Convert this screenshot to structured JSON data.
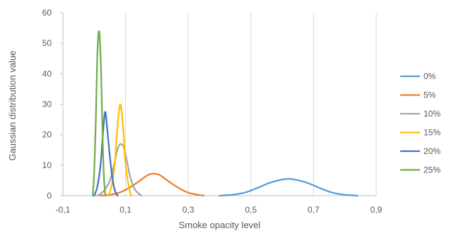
{
  "chart_data": {
    "type": "line",
    "title": "",
    "xlabel": "Smoke opacity level",
    "ylabel": "Gaussian distribution value",
    "xlim": [
      -0.1,
      0.9
    ],
    "ylim": [
      0,
      60
    ],
    "xticks": [
      -0.1,
      0.1,
      0.3,
      0.5,
      0.7,
      0.9
    ],
    "xtick_labels": [
      "-0,1",
      "0,1",
      "0,3",
      "0,5",
      "0,7",
      "0,9"
    ],
    "yticks": [
      0,
      10,
      20,
      30,
      40,
      50,
      60
    ],
    "ytick_labels": [
      "0",
      "10",
      "20",
      "30",
      "40",
      "50",
      "60"
    ],
    "grid": "vertical",
    "legend_position": "right",
    "series": [
      {
        "name": "0%",
        "color": "#5B9BD5",
        "x": [
          0.4,
          0.44,
          0.48,
          0.52,
          0.56,
          0.6,
          0.62,
          0.64,
          0.68,
          0.72,
          0.76,
          0.8,
          0.84
        ],
        "y": [
          0.0,
          0.3,
          1.0,
          2.5,
          4.2,
          5.3,
          5.5,
          5.3,
          4.2,
          2.5,
          1.0,
          0.3,
          0.0
        ]
      },
      {
        "name": "5%",
        "color": "#ED7D31",
        "x": [
          0.02,
          0.05,
          0.08,
          0.11,
          0.14,
          0.17,
          0.19,
          0.21,
          0.24,
          0.27,
          0.3,
          0.33,
          0.35
        ],
        "y": [
          0.0,
          0.3,
          1.0,
          2.5,
          4.5,
          6.7,
          7.2,
          6.7,
          4.5,
          2.5,
          1.0,
          0.3,
          0.0
        ]
      },
      {
        "name": "10%",
        "color": "#A5A5A5",
        "x": [
          0.01,
          0.03,
          0.05,
          0.065,
          0.075,
          0.085,
          0.095,
          0.105,
          0.115,
          0.13,
          0.15
        ],
        "y": [
          0.0,
          1.5,
          5.0,
          11.0,
          15.5,
          17.0,
          15.5,
          11.0,
          6.0,
          2.0,
          0.0
        ]
      },
      {
        "name": "15%",
        "color": "#FFC000",
        "x": [
          0.045,
          0.055,
          0.065,
          0.072,
          0.078,
          0.083,
          0.088,
          0.094,
          0.1,
          0.11,
          0.118
        ],
        "y": [
          0.0,
          3.0,
          10.0,
          20.0,
          27.0,
          30.0,
          27.0,
          20.0,
          10.0,
          3.0,
          0.0
        ]
      },
      {
        "name": "20%",
        "color": "#4472C4",
        "x": [
          0.0,
          0.01,
          0.02,
          0.026,
          0.031,
          0.035,
          0.039,
          0.045,
          0.055,
          0.065,
          0.075
        ],
        "y": [
          0.0,
          3.0,
          10.0,
          18.0,
          24.5,
          27.5,
          24.5,
          18.0,
          8.0,
          2.0,
          0.0
        ]
      },
      {
        "name": "25%",
        "color": "#70AD47",
        "x": [
          -0.005,
          0.0,
          0.005,
          0.009,
          0.012,
          0.015,
          0.018,
          0.022,
          0.026,
          0.03,
          0.035
        ],
        "y": [
          0.0,
          8.0,
          25.0,
          43.0,
          51.0,
          54.0,
          51.0,
          40.0,
          22.0,
          8.0,
          0.0
        ]
      }
    ]
  }
}
